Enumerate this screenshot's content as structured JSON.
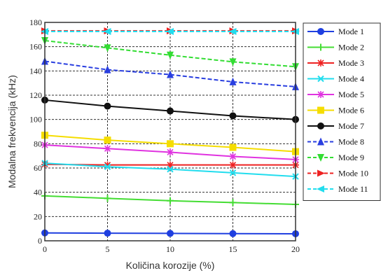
{
  "chart_data": {
    "type": "line",
    "xlabel": "Količina korozije (%)",
    "ylabel": "Modalna frekvencija (kHz)",
    "x": [
      0,
      5,
      10,
      15,
      20
    ],
    "xlim": [
      0,
      20
    ],
    "ylim": [
      0,
      180
    ],
    "xticks": [
      0,
      5,
      10,
      15,
      20
    ],
    "yticks": [
      0,
      20,
      40,
      60,
      80,
      100,
      120,
      140,
      160,
      180
    ],
    "grid": true,
    "legend_position": "right",
    "series": [
      {
        "name": "Mode 1",
        "color": "#1f3fe0",
        "marker": "circle",
        "dash": false,
        "values": [
          6.5,
          6.3,
          6.1,
          5.9,
          5.8
        ]
      },
      {
        "name": "Mode 2",
        "color": "#44dd33",
        "marker": "plus",
        "dash": false,
        "values": [
          37,
          35,
          33,
          31.5,
          30
        ]
      },
      {
        "name": "Mode 3",
        "color": "#ee2222",
        "marker": "star",
        "dash": false,
        "values": [
          63,
          62.5,
          62.5,
          62.5,
          62.5
        ]
      },
      {
        "name": "Mode 4",
        "color": "#22ddee",
        "marker": "x",
        "dash": false,
        "values": [
          64,
          61,
          59,
          56,
          53
        ]
      },
      {
        "name": "Mode 5",
        "color": "#e033e0",
        "marker": "star",
        "dash": false,
        "values": [
          79,
          76,
          73,
          69.5,
          67
        ]
      },
      {
        "name": "Mode 6",
        "color": "#f5dd00",
        "marker": "square",
        "dash": false,
        "values": [
          87,
          83,
          80,
          77,
          73.5
        ]
      },
      {
        "name": "Mode 7",
        "color": "#111111",
        "marker": "circle",
        "dash": false,
        "values": [
          116,
          111,
          107,
          103,
          100
        ]
      },
      {
        "name": "Mode 8",
        "color": "#2a3fe0",
        "marker": "triangle-up",
        "dash": true,
        "values": [
          148,
          141,
          137,
          131,
          127
        ]
      },
      {
        "name": "Mode 9",
        "color": "#33dd33",
        "marker": "triangle-down",
        "dash": true,
        "values": [
          165,
          159,
          153,
          147.5,
          143.5
        ]
      },
      {
        "name": "Mode 10",
        "color": "#ee2222",
        "marker": "triangle-right",
        "dash": true,
        "values": [
          173,
          173,
          173,
          173,
          173
        ]
      },
      {
        "name": "Mode 11",
        "color": "#22ddee",
        "marker": "triangle-left",
        "dash": true,
        "values": [
          172.5,
          172.5,
          172.5,
          172.5,
          172.5
        ]
      }
    ]
  }
}
